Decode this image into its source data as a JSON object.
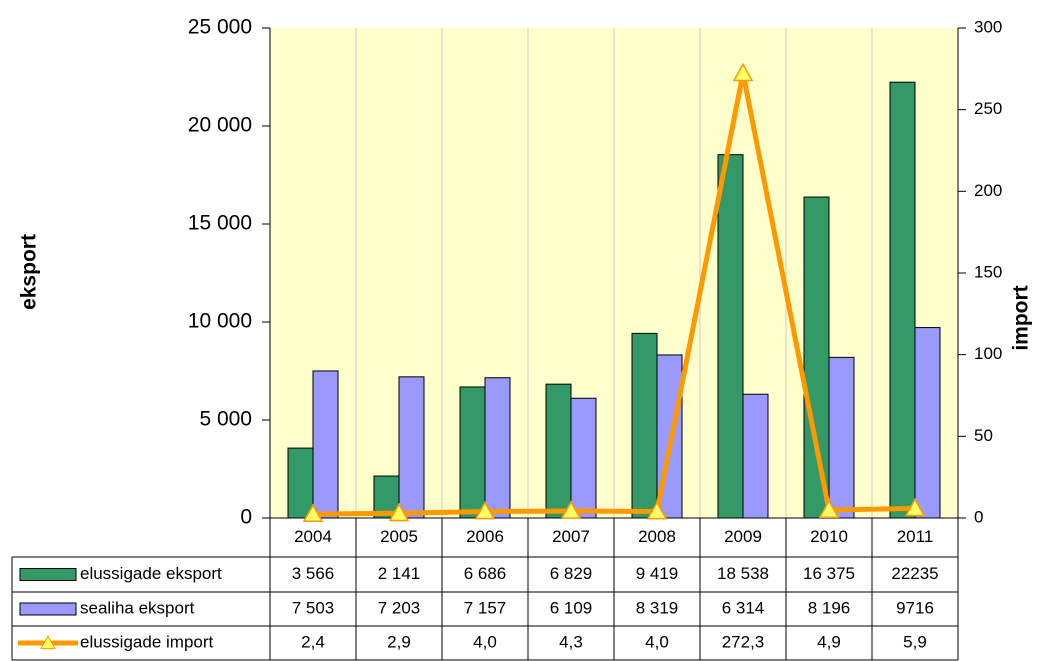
{
  "chart_data": {
    "type": "bar_line_table",
    "categories": [
      "2004",
      "2005",
      "2006",
      "2007",
      "2008",
      "2009",
      "2010",
      "2011"
    ],
    "series": [
      {
        "name": "elussigade eksport",
        "color": "#339966",
        "kind": "bar",
        "values": [
          3566,
          2141,
          6686,
          6829,
          9419,
          18538,
          16375,
          22235
        ],
        "value_labels": [
          "3 566",
          "2 141",
          "6 686",
          "6 829",
          "9 419",
          "18 538",
          "16 375",
          "22235"
        ]
      },
      {
        "name": "sealiha eksport",
        "color": "#9999ff",
        "kind": "bar",
        "values": [
          7503,
          7203,
          7157,
          6109,
          8319,
          6314,
          8196,
          9716
        ],
        "value_labels": [
          "7 503",
          "7 203",
          "7 157",
          "6 109",
          "8 319",
          "6 314",
          "8 196",
          "9716"
        ]
      },
      {
        "name": "elussigade import",
        "color": "#ff9900",
        "kind": "line",
        "axis": "y2",
        "values": [
          2.4,
          2.9,
          4.0,
          4.3,
          4.0,
          272.3,
          4.9,
          5.9
        ],
        "value_labels": [
          "2,4",
          "2,9",
          "4,0",
          "4,3",
          "4,0",
          "272,3",
          "4,9",
          "5,9"
        ]
      }
    ],
    "ylabel": "eksport",
    "y2label": "import",
    "ylim": [
      0,
      25000
    ],
    "yticks": [
      0,
      {
        "value": 5000,
        "label": "5 000"
      },
      {
        "value": 10000,
        "label": "10 000"
      },
      {
        "value": 15000,
        "label": "15 000"
      },
      {
        "value": 20000,
        "label": "20 000"
      },
      {
        "value": 25000,
        "label": "25 000"
      }
    ],
    "y2lim": [
      0,
      300
    ],
    "y2ticks": [
      0,
      50,
      100,
      150,
      200,
      250,
      300
    ],
    "background": "#ffffcc"
  }
}
